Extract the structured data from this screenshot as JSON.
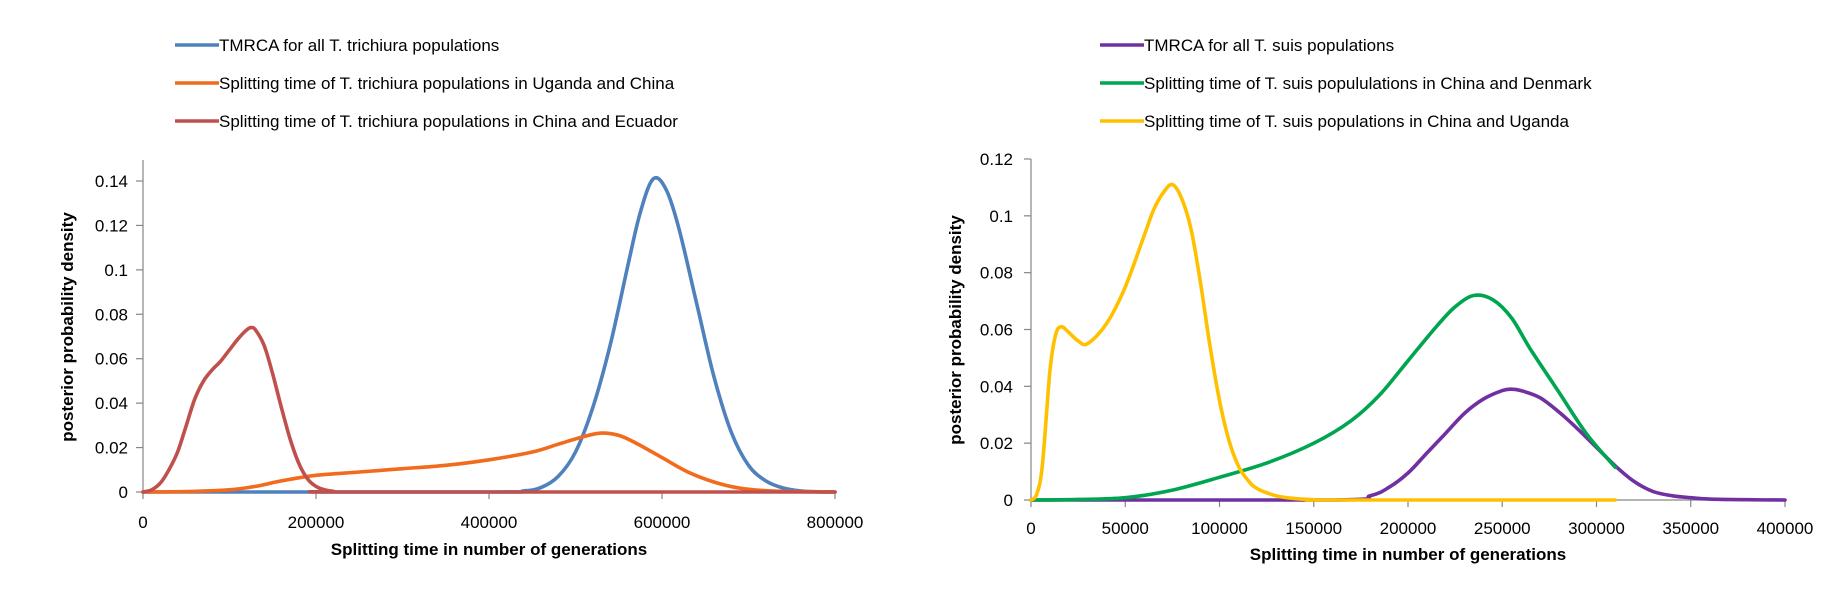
{
  "chart_data": [
    {
      "type": "line",
      "title": "",
      "xlabel": "Splitting time in number of generations",
      "ylabel": "posterior probability density",
      "xlim": [
        0,
        800000
      ],
      "ylim": [
        0,
        0.15
      ],
      "xticks": [
        0,
        200000,
        400000,
        600000,
        800000
      ],
      "xtick_labels": [
        "0",
        "200000",
        "400000",
        "600000",
        "800000"
      ],
      "yticks": [
        0,
        0.02,
        0.04,
        0.06,
        0.08,
        0.1,
        0.12,
        0.14
      ],
      "ytick_labels": [
        "0",
        "0.02",
        "0.04",
        "0.06",
        "0.08",
        "0.1",
        "0.12",
        "0.14"
      ],
      "grid": false,
      "legend_position": "top",
      "series": [
        {
          "name": "TMRCA for all T. trichiura populations",
          "color": "#4f81bd",
          "x": [
            0,
            400000,
            440000,
            460000,
            480000,
            500000,
            520000,
            540000,
            560000,
            575000,
            590000,
            605000,
            620000,
            640000,
            660000,
            680000,
            700000,
            720000,
            740000,
            760000,
            780000,
            800000
          ],
          "y": [
            0,
            0,
            0.0005,
            0.002,
            0.007,
            0.018,
            0.038,
            0.066,
            0.101,
            0.126,
            0.141,
            0.136,
            0.118,
            0.085,
            0.052,
            0.027,
            0.012,
            0.005,
            0.0018,
            0.0005,
            0.0001,
            0
          ]
        },
        {
          "name": "Splitting time of T. trichiura populations in Uganda and China",
          "color": "#f26b1d",
          "x": [
            0,
            50000,
            100000,
            130000,
            160000,
            200000,
            250000,
            300000,
            350000,
            400000,
            450000,
            480000,
            510000,
            530000,
            550000,
            570000,
            600000,
            630000,
            660000,
            690000,
            720000,
            750000,
            780000,
            800000
          ],
          "y": [
            0,
            0.0002,
            0.001,
            0.0025,
            0.005,
            0.0075,
            0.009,
            0.0105,
            0.012,
            0.0145,
            0.018,
            0.0215,
            0.025,
            0.0265,
            0.0255,
            0.022,
            0.0155,
            0.009,
            0.0045,
            0.0017,
            0.0006,
            0.0002,
            0.0001,
            0
          ]
        },
        {
          "name": "Splitting time of T. trichiura populations in China and Ecuador",
          "color": "#c0504d",
          "x": [
            0,
            10000,
            20000,
            30000,
            40000,
            50000,
            60000,
            70000,
            80000,
            90000,
            100000,
            110000,
            120000,
            125000,
            130000,
            140000,
            150000,
            160000,
            170000,
            180000,
            190000,
            200000,
            210000,
            220000,
            240000,
            800000
          ],
          "y": [
            0,
            0.001,
            0.004,
            0.01,
            0.018,
            0.03,
            0.042,
            0.05,
            0.055,
            0.059,
            0.064,
            0.069,
            0.073,
            0.074,
            0.073,
            0.066,
            0.053,
            0.038,
            0.024,
            0.013,
            0.006,
            0.0025,
            0.001,
            0.0003,
            0,
            0
          ]
        }
      ]
    },
    {
      "type": "line",
      "title": "",
      "xlabel": "Splitting time in number of generations",
      "ylabel": "posterior probability density",
      "xlim": [
        0,
        400000
      ],
      "ylim": [
        0,
        0.12
      ],
      "xticks": [
        0,
        50000,
        100000,
        150000,
        200000,
        250000,
        300000,
        350000,
        400000
      ],
      "xtick_labels": [
        "0",
        "50000",
        "100000",
        "150000",
        "200000",
        "250000",
        "300000",
        "350000",
        "400000"
      ],
      "yticks": [
        0,
        0.02,
        0.04,
        0.06,
        0.08,
        0.1,
        0.12
      ],
      "ytick_labels": [
        "0",
        "0.02",
        "0.04",
        "0.06",
        "0.08",
        "0.1",
        "0.12"
      ],
      "grid": false,
      "legend_position": "top",
      "series": [
        {
          "name": "TMRCA for all T. suis populations",
          "color": "#7030a0",
          "x": [
            0,
            160000,
            180000,
            190000,
            200000,
            210000,
            220000,
            230000,
            240000,
            250000,
            255000,
            260000,
            270000,
            280000,
            290000,
            300000,
            310000,
            320000,
            330000,
            340000,
            350000,
            360000,
            380000,
            400000
          ],
          "y": [
            0,
            0,
            0.0015,
            0.0045,
            0.0095,
            0.0165,
            0.0235,
            0.0305,
            0.0355,
            0.0385,
            0.039,
            0.0385,
            0.036,
            0.031,
            0.025,
            0.0185,
            0.012,
            0.0065,
            0.003,
            0.0015,
            0.0008,
            0.0003,
            0.0001,
            0
          ]
        },
        {
          "name": "Splitting time of T. suis popululations in China and Denmark",
          "color": "#00a550",
          "x": [
            0,
            25000,
            50000,
            75000,
            100000,
            125000,
            150000,
            170000,
            185000,
            200000,
            215000,
            225000,
            235000,
            245000,
            255000,
            265000,
            280000,
            295000,
            310000
          ],
          "y": [
            0,
            0.0002,
            0.0008,
            0.0035,
            0.008,
            0.013,
            0.02,
            0.028,
            0.037,
            0.049,
            0.061,
            0.068,
            0.072,
            0.0705,
            0.064,
            0.053,
            0.038,
            0.023,
            0.0115
          ]
        },
        {
          "name": "Splitting time of T. suis populations in China and Uganda",
          "color": "#ffc000",
          "x": [
            0,
            3000,
            6000,
            10000,
            13000,
            16000,
            20000,
            25000,
            30000,
            40000,
            50000,
            60000,
            65000,
            70000,
            75000,
            80000,
            85000,
            90000,
            95000,
            100000,
            105000,
            110000,
            115000,
            120000,
            130000,
            140000,
            150000,
            160000,
            310000
          ],
          "y": [
            0,
            0.002,
            0.012,
            0.045,
            0.058,
            0.061,
            0.059,
            0.056,
            0.055,
            0.062,
            0.075,
            0.093,
            0.102,
            0.108,
            0.111,
            0.106,
            0.095,
            0.076,
            0.054,
            0.035,
            0.021,
            0.012,
            0.007,
            0.004,
            0.0015,
            0.0005,
            0.0001,
            0,
            0
          ]
        }
      ]
    }
  ]
}
